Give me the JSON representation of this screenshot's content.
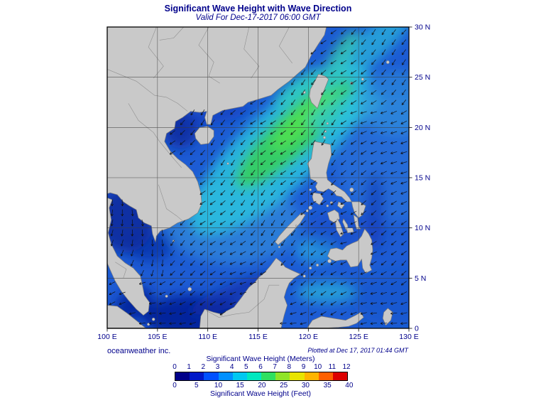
{
  "title": "Significant Wave Height with Wave Direction",
  "subtitle": "Valid For Dec-17-2017 06:00 GMT",
  "footer": {
    "credit": "oceanweather inc.",
    "plotted_at": "Plotted at Dec 17, 2017 01:44 GMT"
  },
  "axes": {
    "lat_ticks": [
      {
        "label": "30 N",
        "value": 30
      },
      {
        "label": "25 N",
        "value": 25
      },
      {
        "label": "20 N",
        "value": 20
      },
      {
        "label": "15 N",
        "value": 15
      },
      {
        "label": "10 N",
        "value": 10
      },
      {
        "label": "5 N",
        "value": 5
      },
      {
        "label": "0",
        "value": 0
      }
    ],
    "lon_ticks": [
      {
        "label": "100 E",
        "value": 100
      },
      {
        "label": "105 E",
        "value": 105
      },
      {
        "label": "110 E",
        "value": 110
      },
      {
        "label": "115 E",
        "value": 115
      },
      {
        "label": "120 E",
        "value": 120
      },
      {
        "label": "125 E",
        "value": 125
      },
      {
        "label": "130 E",
        "value": 130
      }
    ]
  },
  "legend": {
    "meters_title": "Significant Wave Height (Meters)",
    "feet_title": "Significant Wave Height (Feet)",
    "meters_ticks": [
      "0",
      "1",
      "2",
      "3",
      "4",
      "5",
      "6",
      "7",
      "8",
      "9",
      "10",
      "11",
      "12"
    ],
    "feet_ticks": [
      "0",
      "5",
      "10",
      "15",
      "20",
      "25",
      "30",
      "35",
      "40"
    ],
    "bar_colors": [
      "#000089",
      "#0018c8",
      "#0050ff",
      "#0090ff",
      "#00c8f0",
      "#00e8c0",
      "#30e060",
      "#90e428",
      "#e8e400",
      "#ffb400",
      "#ff6000",
      "#dc0000"
    ]
  },
  "colors": {
    "text": "#00008b",
    "land": "#c9c9c9",
    "land_border": "#7a7a7a",
    "ocean_base": "#1d5cd4",
    "grid": "#3d3d3d",
    "frame": "#000000",
    "arrow": "#101010"
  }
}
